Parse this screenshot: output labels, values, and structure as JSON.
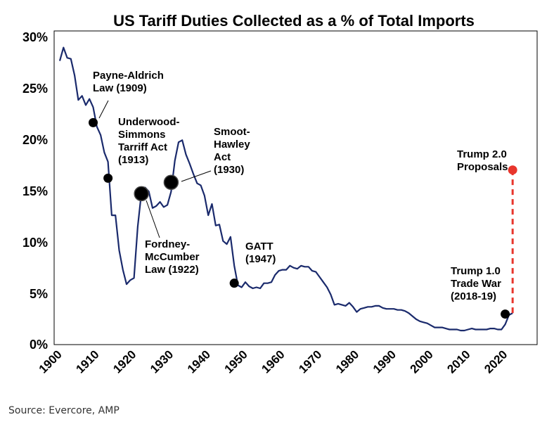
{
  "chart_data": {
    "type": "line",
    "title": "US Tariff Duties Collected as a % of Total Imports",
    "xlabel": "",
    "ylabel": "",
    "xlim": [
      1900,
      2025
    ],
    "ylim": [
      0,
      30
    ],
    "x_ticks": [
      1900,
      1910,
      1920,
      1930,
      1940,
      1950,
      1960,
      1970,
      1980,
      1990,
      2000,
      2010,
      2020
    ],
    "x_tick_labels": [
      "1900",
      "1910",
      "1920",
      "1930",
      "1940",
      "1950",
      "1960",
      "1970",
      "1980",
      "1990",
      "2000",
      "2010",
      "2020"
    ],
    "y_ticks": [
      0,
      5,
      10,
      15,
      20,
      25,
      30
    ],
    "y_tick_labels": [
      "0%",
      "5%",
      "10%",
      "15%",
      "20%",
      "25%",
      "30%"
    ],
    "grid": false,
    "line_color": "#1a2a6c",
    "series": [
      {
        "x": [
          1900,
          1901,
          1902,
          1903,
          1904,
          1905,
          1906,
          1907,
          1908,
          1909,
          1910,
          1911,
          1912,
          1913,
          1914,
          1915,
          1916,
          1917,
          1918,
          1919,
          1920,
          1921,
          1922,
          1923,
          1924,
          1925,
          1926,
          1927,
          1928,
          1929,
          1930,
          1931,
          1932,
          1933,
          1934,
          1935,
          1936,
          1937,
          1938,
          1939,
          1940,
          1941,
          1942,
          1943,
          1944,
          1945,
          1946,
          1947,
          1948,
          1949,
          1950,
          1951,
          1952,
          1953,
          1954,
          1955,
          1956,
          1957,
          1958,
          1959,
          1960,
          1961,
          1962,
          1963,
          1964,
          1965,
          1966,
          1967,
          1968,
          1969,
          1970,
          1971,
          1972,
          1973,
          1974,
          1975,
          1976,
          1977,
          1978,
          1979,
          1980,
          1981,
          1982,
          1983,
          1984,
          1985,
          1986,
          1987,
          1988,
          1989,
          1990,
          1991,
          1992,
          1993,
          1994,
          1995,
          1996,
          1997,
          1998,
          1999,
          2000,
          2001,
          2002,
          2003,
          2004,
          2005,
          2006,
          2007,
          2008,
          2009,
          2010,
          2011,
          2012,
          2013,
          2014,
          2015,
          2016,
          2017,
          2018,
          2019,
          2020,
          2021,
          2022
        ],
        "values": [
          27.5,
          28.8,
          27.8,
          27.7,
          26.1,
          23.7,
          24.1,
          23.2,
          23.8,
          23.0,
          21.1,
          20.3,
          18.6,
          17.7,
          12.5,
          12.5,
          9.1,
          7.2,
          5.8,
          6.2,
          6.4,
          11.4,
          14.7,
          15.2,
          14.8,
          13.2,
          13.4,
          13.8,
          13.3,
          13.5,
          14.8,
          17.8,
          19.6,
          19.8,
          18.4,
          17.5,
          16.5,
          15.6,
          15.4,
          14.4,
          12.5,
          13.6,
          11.5,
          11.6,
          10.0,
          9.7,
          10.4,
          7.6,
          5.7,
          5.5,
          6.0,
          5.6,
          5.4,
          5.5,
          5.4,
          5.9,
          5.9,
          6.0,
          6.7,
          7.1,
          7.2,
          7.2,
          7.6,
          7.4,
          7.3,
          7.6,
          7.5,
          7.5,
          7.1,
          7.0,
          6.5,
          6.0,
          5.5,
          4.8,
          3.8,
          3.9,
          3.8,
          3.7,
          4.0,
          3.6,
          3.1,
          3.4,
          3.5,
          3.6,
          3.6,
          3.7,
          3.7,
          3.5,
          3.4,
          3.4,
          3.4,
          3.3,
          3.3,
          3.2,
          3.0,
          2.7,
          2.4,
          2.2,
          2.1,
          2.0,
          1.8,
          1.6,
          1.6,
          1.6,
          1.5,
          1.4,
          1.4,
          1.4,
          1.3,
          1.3,
          1.4,
          1.5,
          1.4,
          1.4,
          1.4,
          1.4,
          1.5,
          1.5,
          1.4,
          1.4,
          1.9,
          2.8,
          3.0
        ]
      },
      {
        "x": [
          2022,
          2022
        ],
        "values": [
          3.0,
          16.9
        ],
        "style": "dashed",
        "color": "#e8352c"
      }
    ],
    "markers": [
      {
        "x": 1909,
        "y": 21.5,
        "size": "small",
        "color": "#000000"
      },
      {
        "x": 1913,
        "y": 16.1,
        "size": "small",
        "color": "#000000"
      },
      {
        "x": 1922,
        "y": 14.6,
        "size": "large",
        "color": "#000000"
      },
      {
        "x": 1930,
        "y": 15.7,
        "size": "large",
        "color": "#000000"
      },
      {
        "x": 1947,
        "y": 5.9,
        "size": "small",
        "color": "#000000"
      },
      {
        "x": 2020,
        "y": 2.9,
        "size": "small",
        "color": "#000000"
      },
      {
        "x": 2022,
        "y": 16.9,
        "size": "small",
        "color": "#e8352c"
      }
    ],
    "annotations": [
      {
        "lines": [
          "Payne-Aldrich",
          "Law (1909)"
        ]
      },
      {
        "lines": [
          "Underwood-",
          "Simmons",
          "Tarriff Act",
          "(1913)"
        ]
      },
      {
        "lines": [
          "Smoot-",
          "Hawley",
          "Act",
          "(1930)"
        ]
      },
      {
        "lines": [
          "Fordney-",
          "McCumber",
          "Law (1922)"
        ]
      },
      {
        "lines": [
          "GATT",
          "(1947)"
        ]
      },
      {
        "lines": [
          "Trump 2.0",
          "Proposals"
        ]
      },
      {
        "lines": [
          "Trump 1.0",
          "Trade War",
          "(2018-19)"
        ]
      }
    ]
  },
  "source": "Source: Evercore, AMP"
}
